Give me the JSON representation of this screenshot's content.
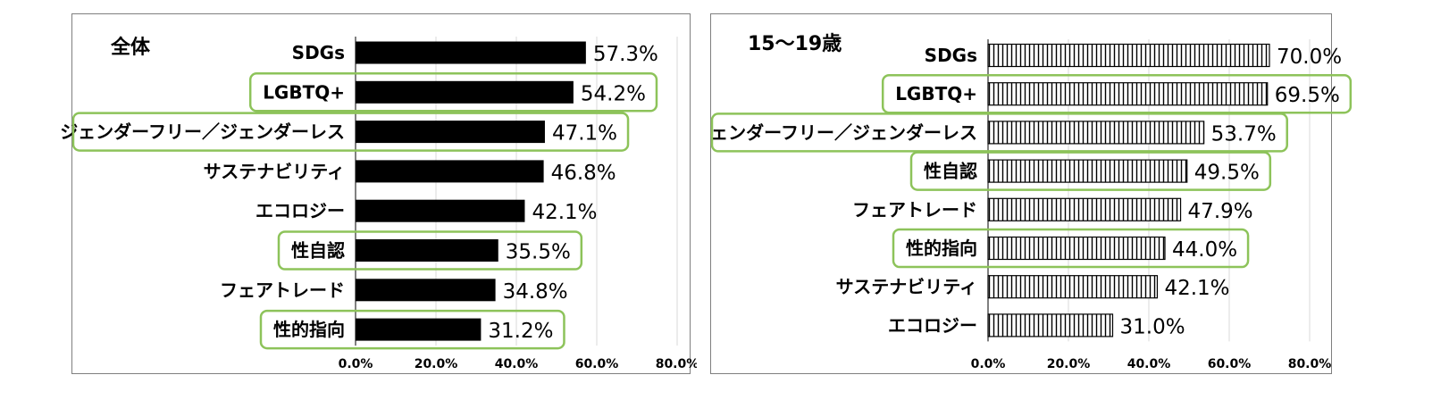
{
  "chart_data": [
    {
      "type": "bar",
      "orientation": "horizontal",
      "title": "全体",
      "categories": [
        "SDGs",
        "LGBTQ+",
        "ジェンダーフリー／ジェンダーレス",
        "サステナビリティ",
        "エコロジー",
        "性自認",
        "フェアトレード",
        "性的指向"
      ],
      "values": [
        57.3,
        54.2,
        47.1,
        46.8,
        42.1,
        35.5,
        34.8,
        31.2
      ],
      "value_labels": [
        "57.3%",
        "54.2%",
        "47.1%",
        "46.8%",
        "42.1%",
        "35.5%",
        "34.8%",
        "31.2%"
      ],
      "highlighted": [
        false,
        true,
        true,
        false,
        false,
        true,
        false,
        true
      ],
      "xlim": [
        0,
        80
      ],
      "xticks": [
        0,
        20,
        40,
        60,
        80
      ],
      "xtick_labels": [
        "0.0%",
        "20.0%",
        "40.0%",
        "60.0%",
        "80.0%"
      ],
      "grid": true,
      "bar_style": "solid",
      "colors": {
        "bar": "#000000",
        "highlight": "#8dc35a",
        "grid": "#d9d9d9",
        "border": "#7f7f7f"
      }
    },
    {
      "type": "bar",
      "orientation": "horizontal",
      "title": "15～19歳",
      "categories": [
        "SDGs",
        "LGBTQ+",
        "ジェンダーフリー／ジェンダーレス",
        "性自認",
        "フェアトレード",
        "性的指向",
        "サステナビリティ",
        "エコロジー"
      ],
      "values": [
        70.0,
        69.5,
        53.7,
        49.5,
        47.9,
        44.0,
        42.1,
        31.0
      ],
      "value_labels": [
        "70.0%",
        "69.5%",
        "53.7%",
        "49.5%",
        "47.9%",
        "44.0%",
        "42.1%",
        "31.0%"
      ],
      "highlighted": [
        false,
        true,
        true,
        true,
        false,
        true,
        false,
        false
      ],
      "xlim": [
        0,
        80
      ],
      "xticks": [
        0,
        20,
        40,
        60,
        80
      ],
      "xtick_labels": [
        "0.0%",
        "20.0%",
        "40.0%",
        "60.0%",
        "80.0%"
      ],
      "grid": true,
      "bar_style": "vertical-stripes",
      "colors": {
        "bar": "#000000",
        "highlight": "#8dc35a",
        "grid": "#d9d9d9",
        "border": "#7f7f7f"
      }
    }
  ]
}
